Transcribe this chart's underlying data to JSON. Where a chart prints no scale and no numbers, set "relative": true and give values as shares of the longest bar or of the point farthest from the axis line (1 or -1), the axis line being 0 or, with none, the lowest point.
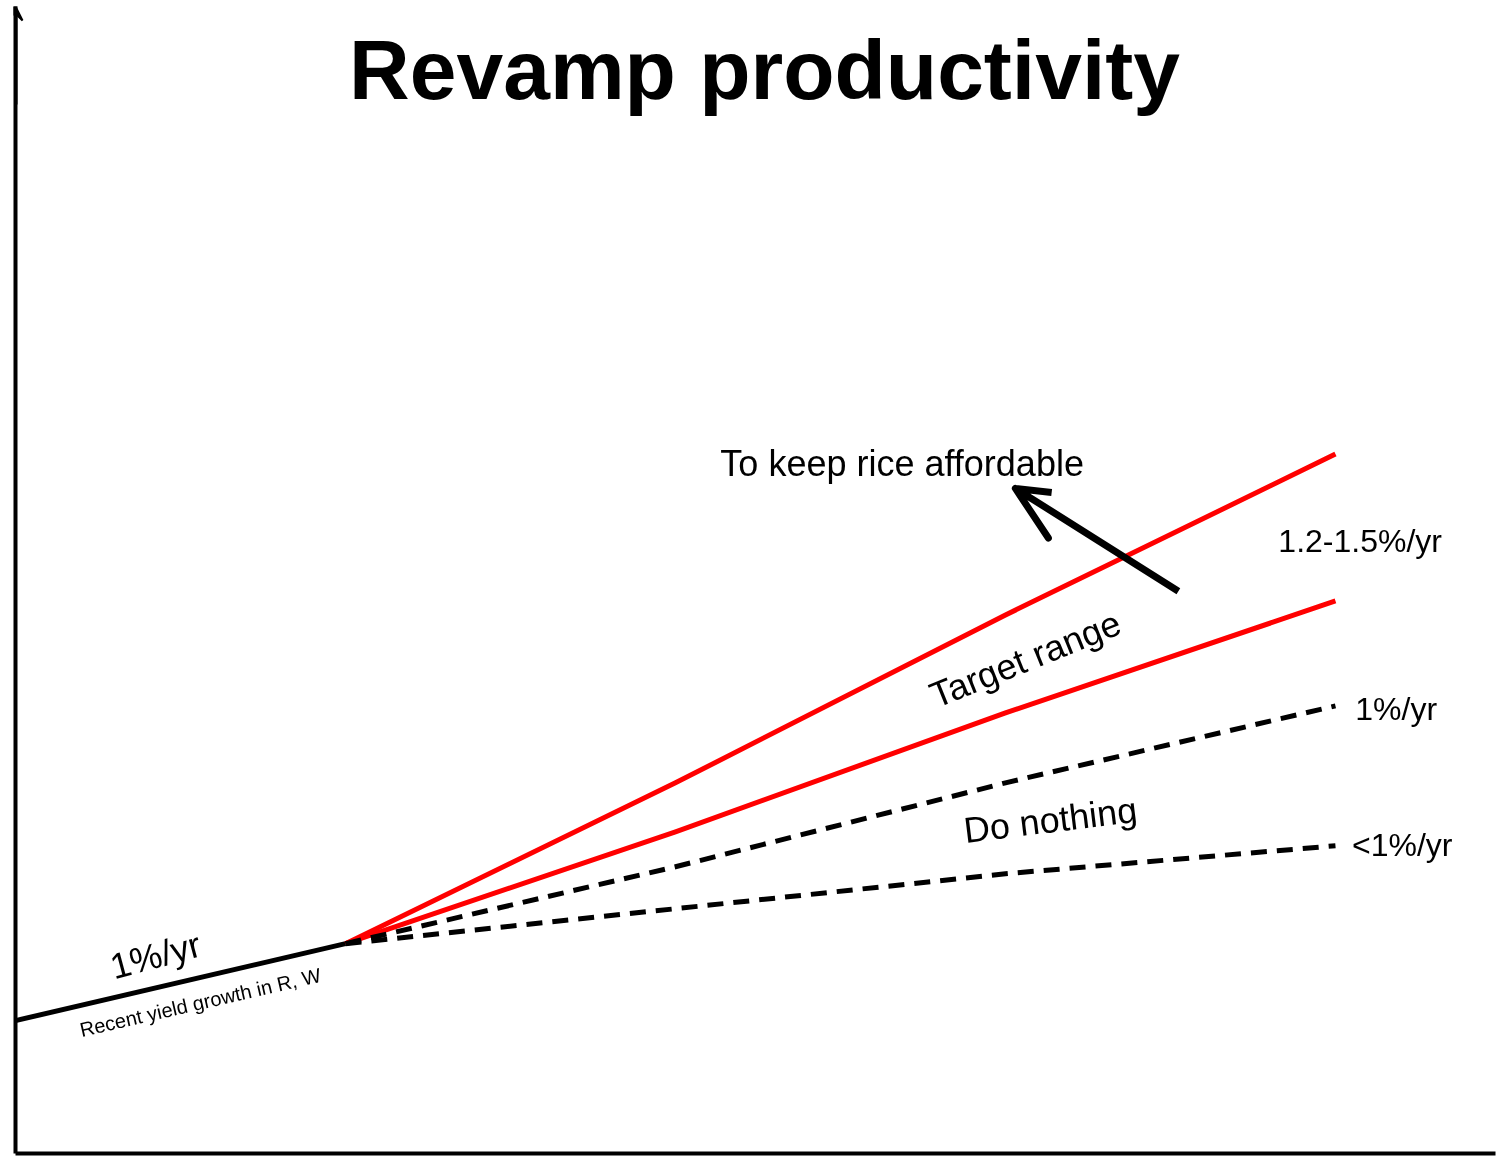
{
  "chart_data": {
    "type": "line",
    "title": "Revamp productivity",
    "relative": true,
    "categories": [
      null,
      null,
      null,
      null,
      null
    ],
    "series": [
      {
        "color": "#000000",
        "line_style": "solid",
        "values": [
          0.19,
          0.3,
          null,
          null,
          null
        ]
      },
      {
        "color": "#ff0000",
        "line_style": "solid",
        "values": [
          null,
          0.3,
          0.53,
          0.77,
          1.0
        ]
      },
      {
        "color": "#ff0000",
        "line_style": "solid",
        "values": [
          null,
          0.3,
          0.46,
          0.63,
          0.79
        ]
      },
      {
        "color": "#000000",
        "line_style": "dashed",
        "values": [
          null,
          0.3,
          0.41,
          0.53,
          0.64
        ]
      },
      {
        "color": "#000000",
        "line_style": "dashed",
        "values": [
          null,
          0.3,
          0.35,
          0.4,
          0.44
        ]
      }
    ],
    "annotations": [
      "To keep rice affordable",
      "1.2-1.5%/yr",
      "Target range",
      "1%/yr",
      "Do nothing",
      "<1%/yr",
      "1%/yr",
      "Recent yield growth in R, W"
    ]
  }
}
